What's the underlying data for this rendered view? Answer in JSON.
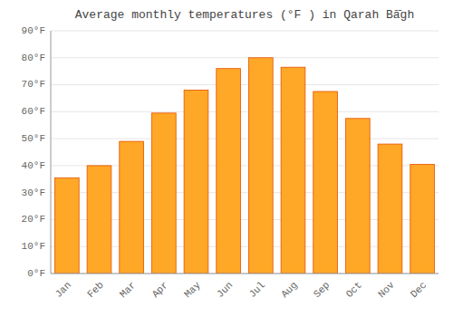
{
  "chart_data": {
    "type": "bar",
    "title": "Average monthly temperatures (°F ) in Qarah Bā̄gh",
    "categories": [
      "Jan",
      "Feb",
      "Mar",
      "Apr",
      "May",
      "Jun",
      "Jul",
      "Aug",
      "Sep",
      "Oct",
      "Nov",
      "Dec"
    ],
    "values": [
      35.5,
      40.0,
      49.0,
      59.5,
      68.0,
      76.0,
      80.0,
      76.5,
      67.5,
      57.5,
      48.0,
      40.5
    ],
    "color": "#FFA726",
    "ylim": [
      0,
      90
    ],
    "yticks": [
      {
        "value": 0,
        "label": "0°F"
      },
      {
        "value": 10,
        "label": "10°F"
      },
      {
        "value": 20,
        "label": "20°F"
      },
      {
        "value": 30,
        "label": "30°F"
      },
      {
        "value": 40,
        "label": "40°F"
      },
      {
        "value": 50,
        "label": "50°F"
      },
      {
        "value": 60,
        "label": "60°F"
      },
      {
        "value": 70,
        "label": "70°F"
      },
      {
        "value": 80,
        "label": "80°F"
      },
      {
        "value": 90,
        "label": "90°F"
      }
    ],
    "grid": true
  }
}
